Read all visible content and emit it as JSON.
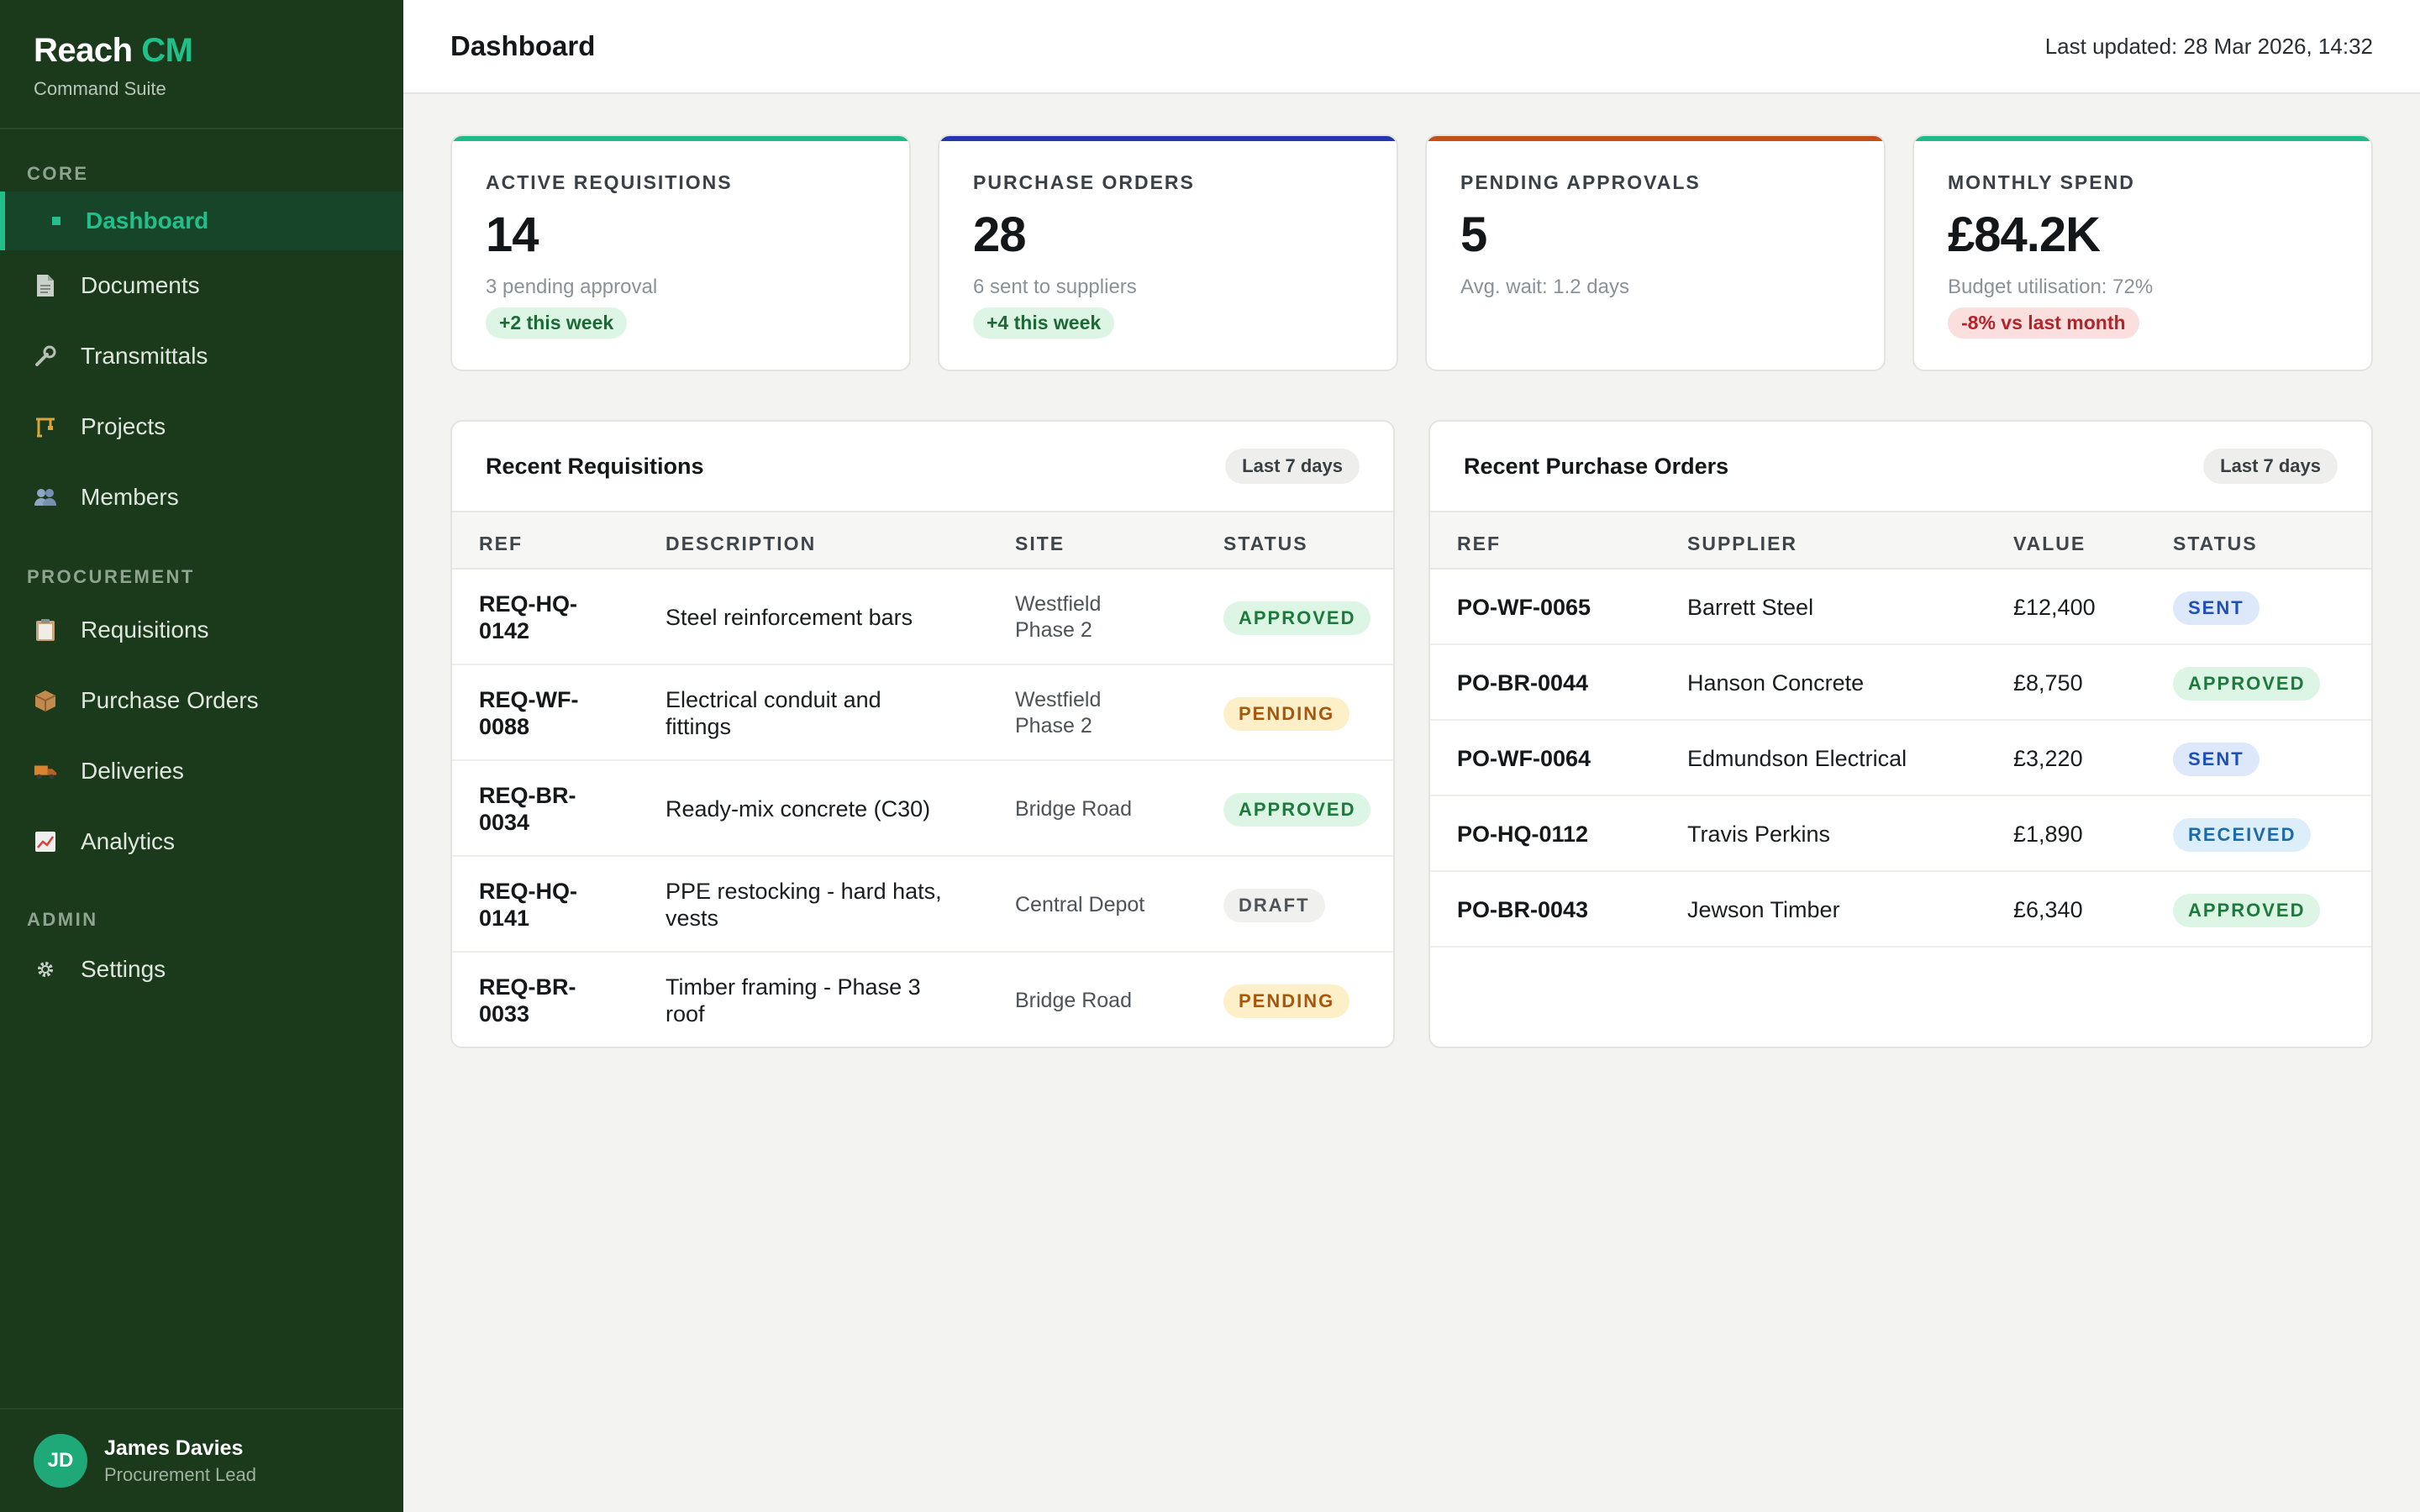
{
  "brand": {
    "name": "Reach",
    "accent": "CM",
    "subtitle": "Command Suite"
  },
  "nav": {
    "sections": [
      {
        "title": "CORE",
        "items": [
          {
            "label": "Dashboard",
            "icon": "dashboard-bullet-icon",
            "active": true
          },
          {
            "label": "Documents",
            "icon": "document-icon"
          },
          {
            "label": "Transmittals",
            "icon": "wrench-icon"
          },
          {
            "label": "Projects",
            "icon": "crane-icon"
          },
          {
            "label": "Members",
            "icon": "people-icon"
          }
        ]
      },
      {
        "title": "PROCUREMENT",
        "items": [
          {
            "label": "Requisitions",
            "icon": "clipboard-icon"
          },
          {
            "label": "Purchase Orders",
            "icon": "package-icon"
          },
          {
            "label": "Deliveries",
            "icon": "truck-icon"
          },
          {
            "label": "Analytics",
            "icon": "chart-icon"
          }
        ]
      },
      {
        "title": "ADMIN",
        "items": [
          {
            "label": "Settings",
            "icon": "gear-icon"
          }
        ]
      }
    ]
  },
  "user": {
    "initials": "JD",
    "name": "James Davies",
    "role": "Procurement Lead"
  },
  "header": {
    "title": "Dashboard",
    "last_updated": "Last updated: 28 Mar 2026, 14:32"
  },
  "kpis": [
    {
      "label": "ACTIVE REQUISITIONS",
      "value": "14",
      "sub": "3 pending approval",
      "badge": "+2 this week",
      "badge_tone": "positive",
      "accent": "#1fb98a"
    },
    {
      "label": "PURCHASE ORDERS",
      "value": "28",
      "sub": "6 sent to suppliers",
      "badge": "+4 this week",
      "badge_tone": "positive",
      "accent": "#2436b0"
    },
    {
      "label": "PENDING APPROVALS",
      "value": "5",
      "sub": "Avg. wait: 1.2 days",
      "badge": "",
      "badge_tone": "",
      "accent": "#c2501a"
    },
    {
      "label": "MONTHLY SPEND",
      "value": "£84.2K",
      "sub": "Budget utilisation: 72%",
      "badge": "-8% vs last month",
      "badge_tone": "negative",
      "accent": "#1fb98a"
    }
  ],
  "requisitions": {
    "title": "Recent Requisitions",
    "range": "Last 7 days",
    "columns": [
      "REF",
      "DESCRIPTION",
      "SITE",
      "STATUS"
    ],
    "rows": [
      {
        "ref": [
          "REQ-HQ-",
          "0142"
        ],
        "description": [
          "Steel reinforcement bars"
        ],
        "site": [
          "Westfield",
          "Phase 2"
        ],
        "status": "APPROVED"
      },
      {
        "ref": [
          "REQ-WF-",
          "0088"
        ],
        "description": [
          "Electrical conduit and",
          "fittings"
        ],
        "site": [
          "Westfield",
          "Phase 2"
        ],
        "status": "PENDING"
      },
      {
        "ref": [
          "REQ-BR-",
          "0034"
        ],
        "description": [
          "Ready-mix concrete (C30)"
        ],
        "site": [
          "Bridge Road"
        ],
        "status": "APPROVED"
      },
      {
        "ref": [
          "REQ-HQ-",
          "0141"
        ],
        "description": [
          "PPE restocking - hard hats,",
          "vests"
        ],
        "site": [
          "Central Depot"
        ],
        "status": "DRAFT"
      },
      {
        "ref": [
          "REQ-BR-",
          "0033"
        ],
        "description": [
          "Timber framing - Phase 3",
          "roof"
        ],
        "site": [
          "Bridge Road"
        ],
        "status": "PENDING"
      }
    ]
  },
  "purchase_orders": {
    "title": "Recent Purchase Orders",
    "range": "Last 7 days",
    "columns": [
      "REF",
      "SUPPLIER",
      "VALUE",
      "STATUS"
    ],
    "rows": [
      {
        "ref": "PO-WF-0065",
        "supplier": "Barrett Steel",
        "value": "£12,400",
        "status": "SENT"
      },
      {
        "ref": "PO-BR-0044",
        "supplier": "Hanson Concrete",
        "value": "£8,750",
        "status": "APPROVED"
      },
      {
        "ref": "PO-WF-0064",
        "supplier": "Edmundson Electrical",
        "value": "£3,220",
        "status": "SENT"
      },
      {
        "ref": "PO-HQ-0112",
        "supplier": "Travis Perkins",
        "value": "£1,890",
        "status": "RECEIVED"
      },
      {
        "ref": "PO-BR-0043",
        "supplier": "Jewson Timber",
        "value": "£6,340",
        "status": "APPROVED"
      }
    ]
  }
}
